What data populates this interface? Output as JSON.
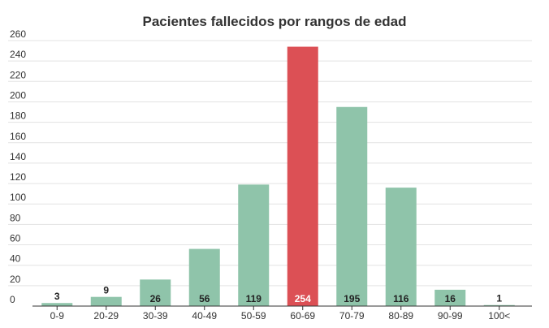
{
  "chart_data": {
    "type": "bar",
    "title": "Pacientes fallecidos por rangos de edad",
    "xlabel": "",
    "ylabel": "",
    "categories": [
      "0-9",
      "20-29",
      "30-39",
      "40-49",
      "50-59",
      "60-69",
      "70-79",
      "80-89",
      "90-99",
      "100<"
    ],
    "values": [
      3,
      9,
      26,
      56,
      119,
      254,
      195,
      116,
      16,
      1
    ],
    "ylim": [
      0,
      260
    ],
    "yticks": [
      0,
      20,
      40,
      60,
      80,
      100,
      120,
      140,
      160,
      180,
      200,
      220,
      240,
      260
    ],
    "grid": true,
    "colors": {
      "default_bar": "#8fc4aa",
      "highlight_bar": "#dc5055",
      "highlight_label": "#ffffff",
      "default_label": "#222222"
    },
    "highlight_category": "60-69"
  }
}
